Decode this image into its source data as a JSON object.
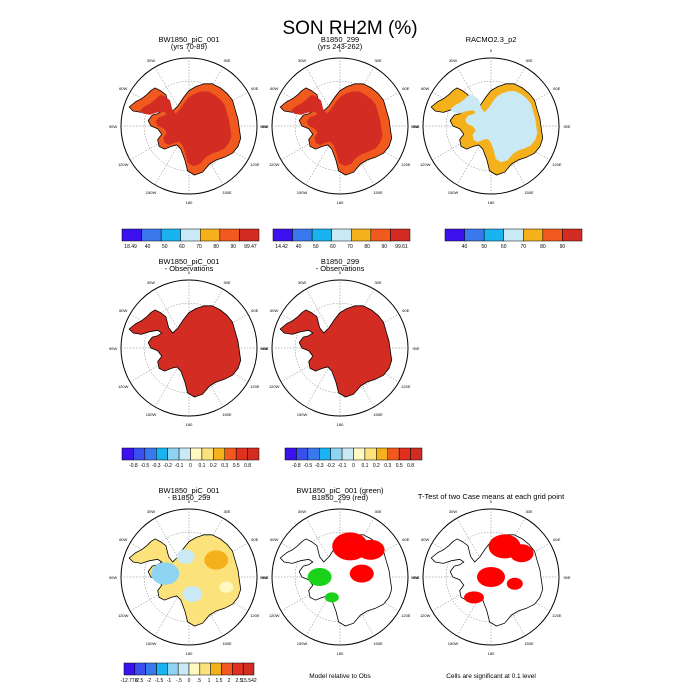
{
  "title": "SON RH2M (%)",
  "colors": {
    "land_high": "#d22c23",
    "land_orange": "#f15a1e",
    "ice_light": "#c9eaf5",
    "yellow_orange": "#f5b11b",
    "green_mark": "#19d219",
    "red_mark": "#ff0000",
    "outline": "#000000"
  },
  "polar_labels": {
    "top": "0",
    "bottom": "180",
    "left": "90W",
    "right": "90E",
    "ul": "60W",
    "ul2": "30W",
    "ur": "30E",
    "ur2": "60E",
    "ll": "120W",
    "ll2": "150W",
    "lr": "120E",
    "lr2": "150E"
  },
  "panels": [
    {
      "title1": "BW1850_piC_001",
      "title2": "(yrs 70-89)",
      "style": "rh_high"
    },
    {
      "title1": "B1850_299",
      "title2": "(yrs 243-262)",
      "style": "rh_high"
    },
    {
      "title1": "RACMO2.3_p2",
      "title2": "",
      "style": "racmo"
    },
    {
      "title1": "BW1850_piC_001",
      "title2": "- Observations",
      "style": "diff_obs"
    },
    {
      "title1": "B1850_299",
      "title2": "- Observations",
      "style": "diff_obs"
    },
    {
      "title1": "BW1850_piC_001",
      "title2": "- B1850_299",
      "style": "diff_cases"
    },
    {
      "title1": "BW1850_piC_001 (green)",
      "title2": "B1850_299 (red)",
      "style": "model_obs",
      "footer": "Model relative to Obs"
    },
    {
      "title1": "T-Test of two Case means at each grid point",
      "title2": "",
      "style": "ttest",
      "footer": "Cells are significant at 0.1 level"
    }
  ],
  "colorbars": [
    {
      "labels": [
        "18.49",
        "40",
        "50",
        "60",
        "70",
        "80",
        "90",
        "99.47"
      ],
      "colors": [
        "#3b12ee",
        "#3a78ee",
        "#19b3f0",
        "#c9eaf5",
        "#f5b11b",
        "#f15a1e",
        "#d22c23"
      ]
    },
    {
      "labels": [
        "14.42",
        "40",
        "50",
        "60",
        "70",
        "80",
        "90",
        "99.61"
      ],
      "colors": [
        "#3b12ee",
        "#3a78ee",
        "#19b3f0",
        "#c9eaf5",
        "#f5b11b",
        "#f15a1e",
        "#d22c23"
      ]
    },
    {
      "labels": [
        "40",
        "50",
        "60",
        "70",
        "80",
        "90"
      ],
      "colors": [
        "#3b12ee",
        "#3a78ee",
        "#19b3f0",
        "#c9eaf5",
        "#f5b11b",
        "#f15a1e",
        "#d22c23"
      ],
      "inner": true
    },
    {
      "labels": [
        "-0.8",
        "-0.5",
        "-0.3",
        "-0.2",
        "-0.1",
        "0",
        "0.1",
        "0.2",
        "0.3",
        "0.5",
        "0.8"
      ],
      "colors": [
        "#3b12ee",
        "#3a50ee",
        "#3a78ee",
        "#19b3f0",
        "#8fd3f2",
        "#c9eaf5",
        "#fff8c0",
        "#fbe27a",
        "#f5b11b",
        "#f15a1e",
        "#e0311e",
        "#d22c23"
      ],
      "inner": true
    },
    {
      "labels": [
        "-0.8",
        "-0.5",
        "-0.3",
        "-0.2",
        "-0.1",
        "0",
        "0.1",
        "0.2",
        "0.3",
        "0.5",
        "0.8"
      ],
      "colors": [
        "#3b12ee",
        "#3a50ee",
        "#3a78ee",
        "#19b3f0",
        "#8fd3f2",
        "#c9eaf5",
        "#fff8c0",
        "#fbe27a",
        "#f5b11b",
        "#f15a1e",
        "#e0311e",
        "#d22c23"
      ],
      "inner": true
    },
    {
      "labels": [
        "-12.778",
        "-2.5",
        "-2",
        "-1.5",
        "-1",
        "-.5",
        "0",
        ".5",
        "1",
        "1.5",
        "2",
        "2.5",
        "15.542"
      ],
      "colors": [
        "#3b12ee",
        "#3a50ee",
        "#3a78ee",
        "#19b3f0",
        "#8fd3f2",
        "#c9eaf5",
        "#fff8c0",
        "#fbe27a",
        "#f5b11b",
        "#f15a1e",
        "#e0311e",
        "#d22c23"
      ]
    }
  ],
  "chart_data": {
    "type": "heatmap",
    "title": "SON RH2M (%)",
    "projection": "south polar stereographic",
    "panels": [
      {
        "name": "BW1850_piC_001 (yrs 70-89)",
        "colorbar_min": 18.49,
        "colorbar_max": 99.47,
        "levels": [
          40,
          50,
          60,
          70,
          80,
          90
        ]
      },
      {
        "name": "B1850_299 (yrs 243-262)",
        "colorbar_min": 14.42,
        "colorbar_max": 99.61,
        "levels": [
          40,
          50,
          60,
          70,
          80,
          90
        ]
      },
      {
        "name": "RACMO2.3_p2",
        "levels": [
          40,
          50,
          60,
          70,
          80,
          90
        ]
      },
      {
        "name": "BW1850_piC_001 - Observations",
        "levels": [
          -0.8,
          -0.5,
          -0.3,
          -0.2,
          -0.1,
          0,
          0.1,
          0.2,
          0.3,
          0.5,
          0.8
        ]
      },
      {
        "name": "B1850_299 - Observations",
        "levels": [
          -0.8,
          -0.5,
          -0.3,
          -0.2,
          -0.1,
          0,
          0.1,
          0.2,
          0.3,
          0.5,
          0.8
        ]
      },
      {
        "name": "BW1850_piC_001 - B1850_299",
        "colorbar_min": -12.778,
        "colorbar_max": 15.542,
        "levels": [
          -2.5,
          -2,
          -1.5,
          -1,
          -0.5,
          0,
          0.5,
          1,
          1.5,
          2,
          2.5
        ]
      },
      {
        "name": "BW1850_piC_001 (green) B1850_299 (red)",
        "note": "Model relative to Obs"
      },
      {
        "name": "T-Test of two Case means at each grid point",
        "note": "Cells are significant at 0.1 level"
      }
    ]
  }
}
